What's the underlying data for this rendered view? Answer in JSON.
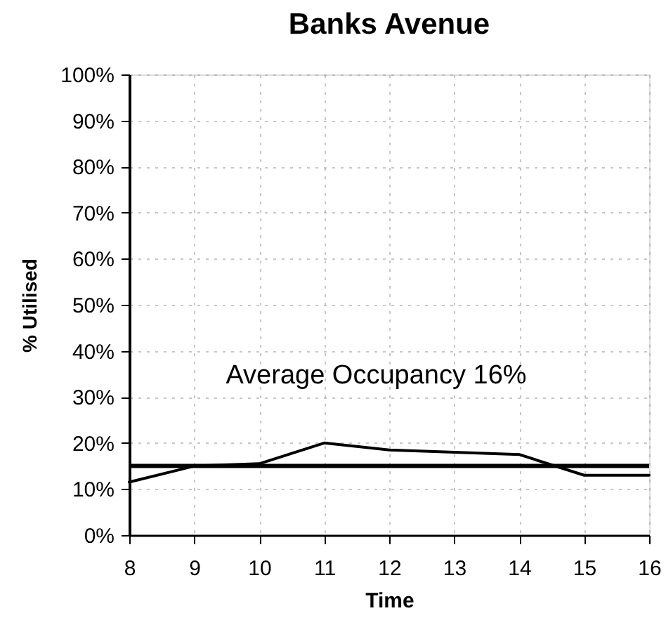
{
  "chart_data": {
    "type": "line",
    "title": "Banks Avenue",
    "xlabel": "Time",
    "ylabel": "% Utilised",
    "x": [
      8,
      9,
      10,
      11,
      12,
      13,
      14,
      15,
      16
    ],
    "series": [
      {
        "color": "#000000",
        "values": [
          11.5,
          15,
          15.5,
          20,
          18.5,
          18,
          17.5,
          13,
          13
        ]
      }
    ],
    "xlim": [
      8,
      16
    ],
    "xticks": [
      8,
      9,
      10,
      11,
      12,
      13,
      14,
      15,
      16
    ],
    "ylim": [
      0,
      100
    ],
    "yticks": [
      {
        "value": 0,
        "label": "0%"
      },
      {
        "value": 10,
        "label": "10%"
      },
      {
        "value": 20,
        "label": "20%"
      },
      {
        "value": 30,
        "label": "30%"
      },
      {
        "value": 40,
        "label": "40%"
      },
      {
        "value": 50,
        "label": "50%"
      },
      {
        "value": 60,
        "label": "60%"
      },
      {
        "value": 70,
        "label": "70%"
      },
      {
        "value": 80,
        "label": "80%"
      },
      {
        "value": 90,
        "label": "90%"
      },
      {
        "value": 100,
        "label": "100%"
      }
    ],
    "grid": true,
    "marker": "none",
    "line_style": "solid",
    "ref_lines": [
      {
        "axis": "y",
        "value": 15,
        "label": "Average Occupancy 16%",
        "color": "#000000"
      }
    ]
  }
}
